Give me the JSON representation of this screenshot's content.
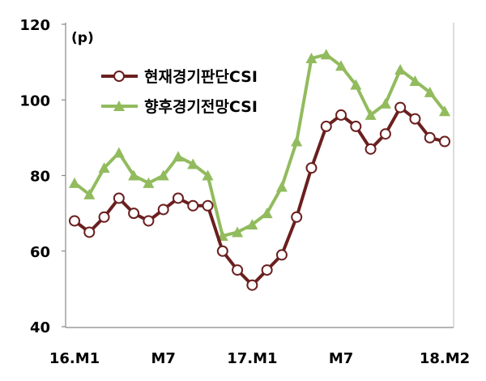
{
  "chart_data": {
    "type": "line",
    "unit_label": "(p)",
    "y_ticks": [
      "40",
      "60",
      "80",
      "100",
      "120"
    ],
    "ylim": [
      40,
      120
    ],
    "x_tick_labels": [
      {
        "index": 0,
        "label": "16.M1"
      },
      {
        "index": 6,
        "label": "M7"
      },
      {
        "index": 12,
        "label": "17.M1"
      },
      {
        "index": 18,
        "label": "M7"
      },
      {
        "index": 25,
        "label": "18.M2"
      }
    ],
    "x_count": 26,
    "grid": false,
    "legend_position": "top-left",
    "series": [
      {
        "name": "현재경기판단CSI",
        "color": "#6b1f1f",
        "marker": "circle",
        "values": [
          68,
          65,
          69,
          74,
          70,
          68,
          71,
          74,
          72,
          72,
          60,
          55,
          51,
          55,
          59,
          69,
          82,
          93,
          96,
          93,
          87,
          91,
          98,
          95,
          90,
          89
        ]
      },
      {
        "name": "향후경기전망CSI",
        "color": "#92bb5e",
        "marker": "triangle",
        "values": [
          78,
          75,
          82,
          86,
          80,
          78,
          80,
          85,
          83,
          80,
          64,
          65,
          67,
          70,
          77,
          89,
          111,
          112,
          109,
          104,
          96,
          99,
          108,
          105,
          102,
          97
        ]
      }
    ]
  }
}
